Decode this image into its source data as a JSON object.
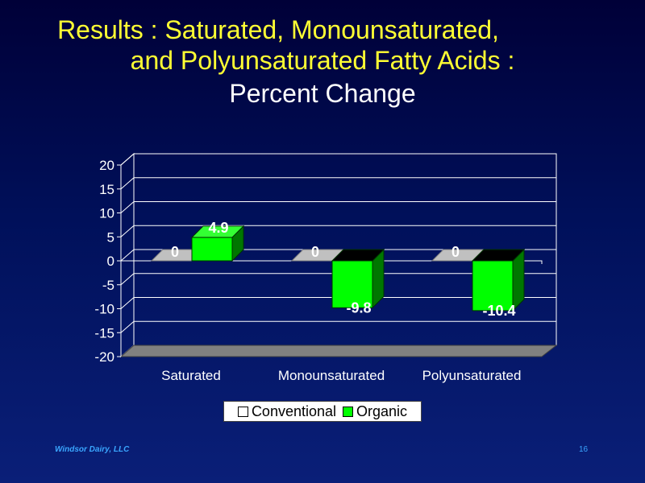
{
  "title": {
    "line1": "Results : Saturated, Monounsaturated,",
    "line2": "and Polyunsaturated Fatty Acids :",
    "line3": "Percent Change"
  },
  "footer": {
    "left": "Windsor Dairy, LLC",
    "page": "16"
  },
  "chart_data": {
    "type": "bar",
    "categories": [
      "Saturated",
      "Monounsaturated",
      "Polyunsaturated"
    ],
    "series": [
      {
        "name": "Conventional",
        "values": [
          0,
          0,
          0
        ],
        "labels": [
          "0",
          "0",
          "0"
        ],
        "color": "#c0c0c0"
      },
      {
        "name": "Organic",
        "values": [
          4.9,
          -9.8,
          -10.4
        ],
        "labels": [
          "4.9",
          "-9.8",
          "-10.4"
        ],
        "color": "#00ff00"
      }
    ],
    "yticks": [
      20,
      15,
      10,
      5,
      0,
      -5,
      -10,
      -15,
      -20
    ],
    "ylim": [
      -20,
      20
    ],
    "grid": true,
    "legend": "bottom",
    "title": "",
    "xlabel": "",
    "ylabel": ""
  }
}
